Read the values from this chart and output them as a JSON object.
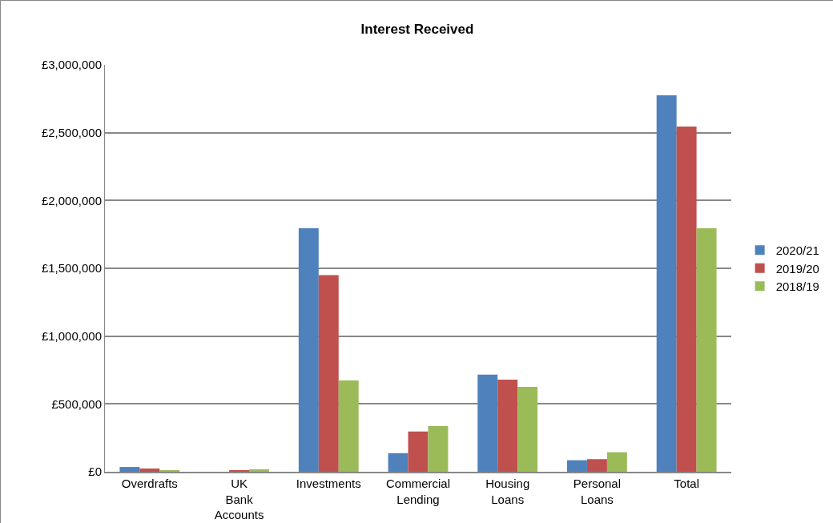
{
  "chart_data": {
    "type": "bar",
    "title": "Interest Received",
    "categories": [
      "Overdrafts",
      "UK Bank Accounts",
      "Investments",
      "Commercial Lending",
      "Housing Loans",
      "Personal Loans",
      "Total"
    ],
    "series": [
      {
        "name": "2020/21",
        "color": "#4f81bd",
        "values": [
          35000,
          0,
          1795000,
          137000,
          716000,
          85000,
          2776000
        ]
      },
      {
        "name": "2019/20",
        "color": "#c0504d",
        "values": [
          24000,
          12000,
          1450000,
          297000,
          679000,
          93000,
          2545000
        ]
      },
      {
        "name": "2018/19",
        "color": "#9bbb59",
        "values": [
          12000,
          18000,
          673000,
          337000,
          626000,
          144000,
          1795000
        ]
      }
    ],
    "ylim": [
      0,
      3000000
    ],
    "yticks": [
      {
        "value": 0,
        "label": "£0"
      },
      {
        "value": 500000,
        "label": "£500,000"
      },
      {
        "value": 1000000,
        "label": "£1,000,000"
      },
      {
        "value": 1500000,
        "label": "£1,500,000"
      },
      {
        "value": 2000000,
        "label": "£2,000,000"
      },
      {
        "value": 2500000,
        "label": "£2,500,000"
      },
      {
        "value": 3000000,
        "label": "£3,000,000"
      }
    ],
    "grid": "y",
    "legend": "right"
  }
}
